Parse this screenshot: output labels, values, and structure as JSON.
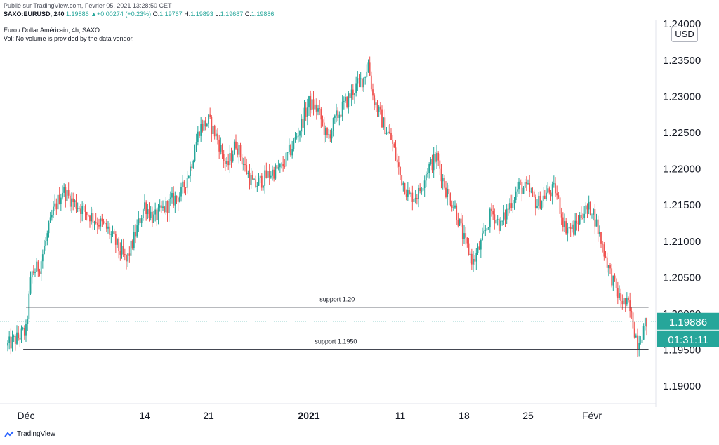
{
  "header": {
    "published": "Publié sur TradingView.com, Février 05, 2021 13:28:50 CET",
    "symbol_line": "SAXO:EURUSD, 240",
    "last": "1.19886",
    "change": "+0.00274 (+0.23%)",
    "o_label": "O:",
    "o": "1.19767",
    "h_label": "H:",
    "h": "1.19893",
    "l_label": "L:",
    "l": "1.19687",
    "c_label": "C:",
    "c": "1.19886",
    "chart_title": "Euro / Dollar Américain, 4h, SAXO",
    "vol_note": "Vol: No volume is provided by the data vendor."
  },
  "currency_button": "USD",
  "price_badge": "1.19886",
  "time_badge": "01:31:11",
  "brand": "TradingView",
  "colors": {
    "up": "#26a69a",
    "down": "#ef5350",
    "badge": "#26a69a",
    "line": "#434651"
  },
  "chart_data": {
    "type": "candlestick",
    "title": "Euro / Dollar Américain, 4h, SAXO",
    "ylim": [
      1.1875,
      1.2405
    ],
    "y_ticks": [
      "1.19000",
      "1.19500",
      "1.20000",
      "1.20500",
      "1.21000",
      "1.21500",
      "1.22000",
      "1.22500",
      "1.23000",
      "1.23500",
      "1.24000"
    ],
    "x_ticks": [
      {
        "label": "Déc",
        "day": 0,
        "bold": false
      },
      {
        "label": "14",
        "day": 13,
        "bold": false
      },
      {
        "label": "21",
        "day": 20,
        "bold": false
      },
      {
        "label": "2021",
        "day": 31,
        "bold": true
      },
      {
        "label": "11",
        "day": 41,
        "bold": false
      },
      {
        "label": "18",
        "day": 48,
        "bold": false
      },
      {
        "label": "25",
        "day": 55,
        "bold": false
      },
      {
        "label": "Févr",
        "day": 62,
        "bold": false
      }
    ],
    "path": [
      [
        -2,
        1.1955
      ],
      [
        0,
        1.1975
      ],
      [
        0.6,
        1.2055
      ],
      [
        1.5,
        1.2065
      ],
      [
        3,
        1.214
      ],
      [
        4,
        1.217
      ],
      [
        5,
        1.2155
      ],
      [
        7,
        1.2135
      ],
      [
        9,
        1.2115
      ],
      [
        11,
        1.207
      ],
      [
        13,
        1.215
      ],
      [
        14,
        1.213
      ],
      [
        16,
        1.2155
      ],
      [
        17,
        1.2165
      ],
      [
        18,
        1.22
      ],
      [
        19,
        1.2255
      ],
      [
        20,
        1.2265
      ],
      [
        21,
        1.224
      ],
      [
        22,
        1.22
      ],
      [
        23,
        1.2235
      ],
      [
        24,
        1.22
      ],
      [
        25,
        1.2175
      ],
      [
        27,
        1.2195
      ],
      [
        28,
        1.22
      ],
      [
        29,
        1.2225
      ],
      [
        30,
        1.2255
      ],
      [
        31,
        1.229
      ],
      [
        32,
        1.228
      ],
      [
        33,
        1.224
      ],
      [
        34,
        1.227
      ],
      [
        35,
        1.229
      ],
      [
        36,
        1.231
      ],
      [
        37,
        1.2325
      ],
      [
        37.5,
        1.2345
      ],
      [
        38,
        1.23
      ],
      [
        39,
        1.2265
      ],
      [
        40,
        1.224
      ],
      [
        41,
        1.219
      ],
      [
        42,
        1.216
      ],
      [
        43,
        1.2165
      ],
      [
        44,
        1.22
      ],
      [
        45,
        1.2215
      ],
      [
        46,
        1.217
      ],
      [
        47,
        1.2145
      ],
      [
        48,
        1.21
      ],
      [
        49,
        1.207
      ],
      [
        50,
        1.21
      ],
      [
        51,
        1.214
      ],
      [
        52,
        1.212
      ],
      [
        53,
        1.215
      ],
      [
        54,
        1.2175
      ],
      [
        55,
        1.217
      ],
      [
        56,
        1.215
      ],
      [
        57,
        1.2165
      ],
      [
        58,
        1.217
      ],
      [
        59,
        1.212
      ],
      [
        60,
        1.2115
      ],
      [
        61,
        1.214
      ],
      [
        62,
        1.2145
      ],
      [
        63,
        1.21
      ],
      [
        64,
        1.2055
      ],
      [
        65,
        1.202
      ],
      [
        66,
        1.201
      ],
      [
        67,
        1.196
      ],
      [
        68,
        1.1988
      ]
    ],
    "lines": [
      {
        "label": "support 1.20",
        "value": 1.2008,
        "x_start_day": 0,
        "x_end_day": 68.2
      },
      {
        "label": "support 1.1950",
        "value": 1.195,
        "x_start_day": -0.3,
        "x_end_day": 68.2
      }
    ],
    "last_price": 1.19886
  }
}
